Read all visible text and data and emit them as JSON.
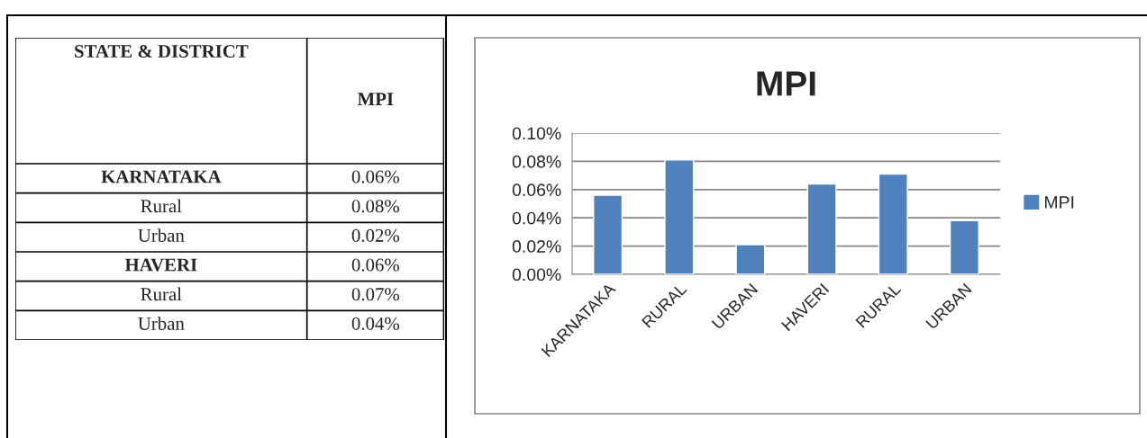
{
  "chart_data": [
    {
      "type": "other",
      "annotations": [
        "STATE & DISTRICT",
        "MPI",
        "KARNATAKA",
        "0.06%",
        "Rural",
        "0.08%",
        "Urban",
        "0.02%",
        "HAVERI",
        "0.06%",
        "Rural",
        "0.07%",
        "Urban",
        "0.04%"
      ]
    },
    {
      "type": "bar",
      "title": "MPI",
      "categories": [
        "KARNATAKA",
        "RURAL",
        "URBAN",
        "HAVERI",
        "RURAL",
        "URBAN"
      ],
      "series": [
        {
          "name": "MPI",
          "color": "#4f81bd",
          "values": [
            0.056,
            0.081,
            0.021,
            0.064,
            0.071,
            0.038
          ]
        }
      ],
      "ylim": [
        0,
        0.1
      ],
      "yticks": [
        {
          "value": 0,
          "label": "0.00%"
        },
        {
          "value": 0.02,
          "label": "0.02%"
        },
        {
          "value": 0.04,
          "label": "0.04%"
        },
        {
          "value": 0.06,
          "label": "0.06%"
        },
        {
          "value": 0.08,
          "label": "0.08%"
        },
        {
          "value": 0.1,
          "label": "0.10%"
        }
      ],
      "grid": "y",
      "legend": "right"
    }
  ]
}
